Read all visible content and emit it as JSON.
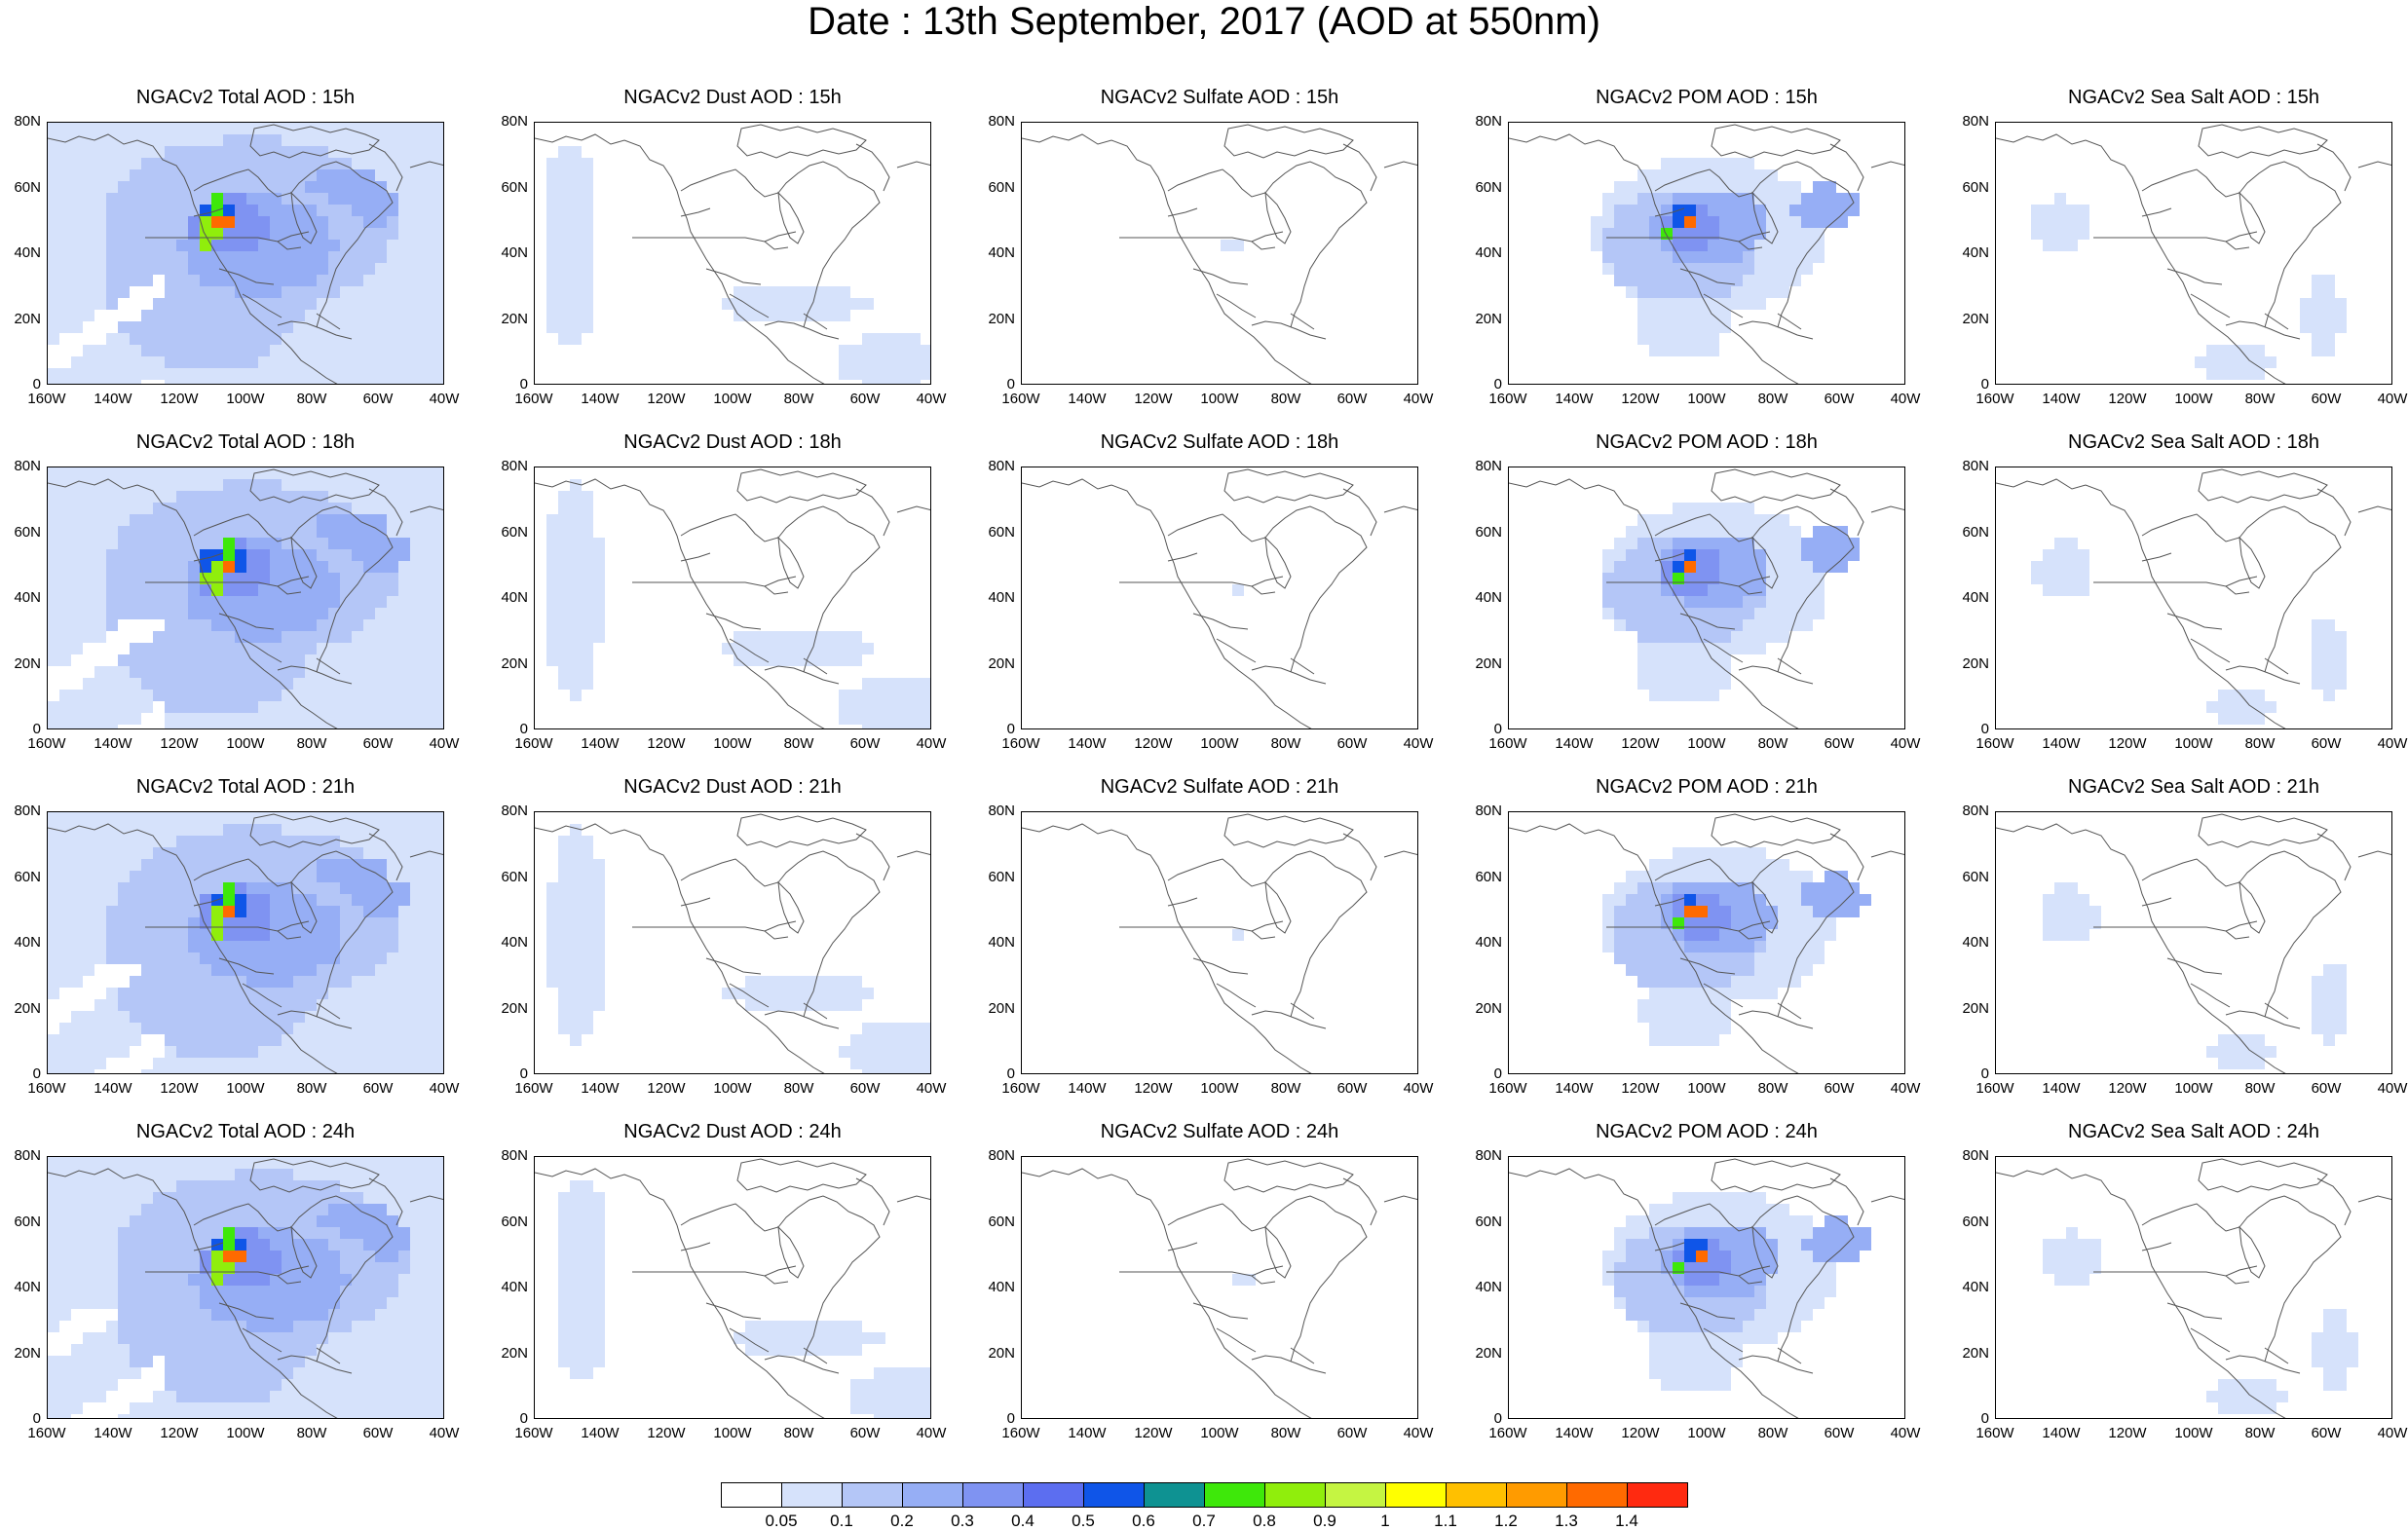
{
  "title": "Date : 13th September, 2017 (AOD at 550nm)",
  "y_ticks": [
    "80N",
    "60N",
    "40N",
    "20N",
    "0"
  ],
  "x_ticks": [
    "160W",
    "140W",
    "120W",
    "100W",
    "80W",
    "60W",
    "40W"
  ],
  "rows": [
    {
      "panels": [
        {
          "title": "NGACv2 Total AOD : 15h",
          "species": "total"
        },
        {
          "title": "NGACv2 Dust AOD : 15h",
          "species": "dust"
        },
        {
          "title": "NGACv2 Sulfate AOD : 15h",
          "species": "sulfate"
        },
        {
          "title": "NGACv2 POM AOD : 15h",
          "species": "pom"
        },
        {
          "title": "NGACv2 Sea Salt AOD : 15h",
          "species": "seasalt"
        }
      ]
    },
    {
      "panels": [
        {
          "title": "NGACv2 Total AOD : 18h",
          "species": "total"
        },
        {
          "title": "NGACv2 Dust AOD : 18h",
          "species": "dust"
        },
        {
          "title": "NGACv2 Sulfate AOD : 18h",
          "species": "sulfate"
        },
        {
          "title": "NGACv2 POM AOD : 18h",
          "species": "pom"
        },
        {
          "title": "NGACv2 Sea Salt AOD : 18h",
          "species": "seasalt"
        }
      ]
    },
    {
      "panels": [
        {
          "title": "NGACv2 Total AOD : 21h",
          "species": "total"
        },
        {
          "title": "NGACv2 Dust AOD : 21h",
          "species": "dust"
        },
        {
          "title": "NGACv2 Sulfate AOD : 21h",
          "species": "sulfate"
        },
        {
          "title": "NGACv2 POM AOD : 21h",
          "species": "pom"
        },
        {
          "title": "NGACv2 Sea Salt AOD : 21h",
          "species": "seasalt"
        }
      ]
    },
    {
      "panels": [
        {
          "title": "NGACv2 Total AOD : 24h",
          "species": "total"
        },
        {
          "title": "NGACv2 Dust AOD : 24h",
          "species": "dust"
        },
        {
          "title": "NGACv2 Sulfate AOD : 24h",
          "species": "sulfate"
        },
        {
          "title": "NGACv2 POM AOD : 24h",
          "species": "pom"
        },
        {
          "title": "NGACv2 Sea Salt  AOD : 24h",
          "species": "seasalt"
        }
      ]
    }
  ],
  "colorbar": {
    "labels": [
      "0.05",
      "0.1",
      "0.2",
      "0.3",
      "0.4",
      "0.5",
      "0.6",
      "0.7",
      "0.8",
      "0.9",
      "1",
      "1.1",
      "1.2",
      "1.3",
      "1.4"
    ],
    "colors": [
      "#ffffff",
      "#d6e2fb",
      "#b4c6f7",
      "#96aef5",
      "#7f93f2",
      "#5c6ef0",
      "#0f55e8",
      "#0e9292",
      "#3ee80a",
      "#90ee0c",
      "#c5f542",
      "#ffff00",
      "#ffc000",
      "#ff9b00",
      "#ff6a00",
      "#ff2a10"
    ]
  }
}
